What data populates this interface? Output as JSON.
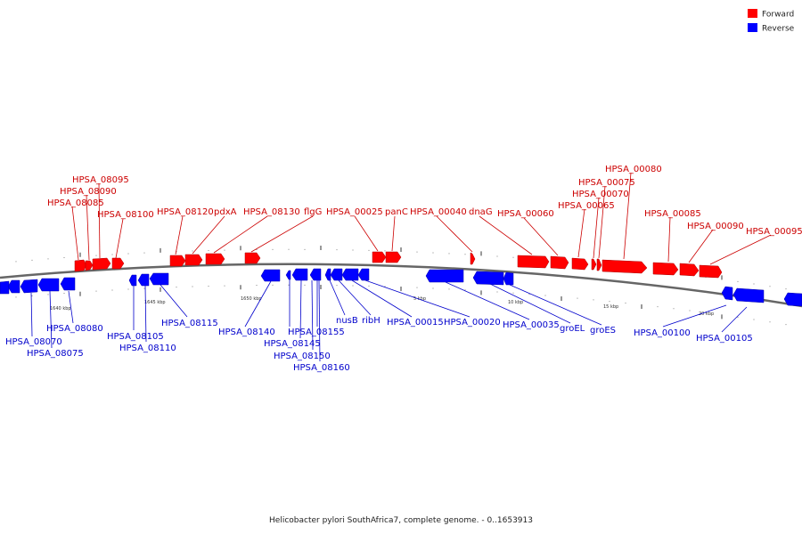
{
  "caption": "Helicobacter pylori SouthAfrica7, complete genome. - 0..1653913",
  "legend": {
    "forward_label": "Forward",
    "reverse_label": "Reverse",
    "forward_color": "#ff0000",
    "reverse_color": "#0000ff"
  },
  "colors": {
    "forward_label": "#cc0000",
    "reverse_label": "#0000cc",
    "backbone": "#666666"
  },
  "ticks": [
    "1640 kbp",
    "1645 kbp",
    "1650 kbp",
    "5 kbp",
    "10 kbp",
    "15 kbp",
    "20 kbp"
  ],
  "forward_labels": [
    "HPSA_08095",
    "HPSA_08090",
    "HPSA_08085",
    "HPSA_08100",
    "HPSA_08120",
    "pdxA",
    "HPSA_08130",
    "flgG",
    "HPSA_00025",
    "panC",
    "HPSA_00040",
    "dnaG",
    "HPSA_00060",
    "HPSA_00065",
    "HPSA_00070",
    "HPSA_00075",
    "HPSA_00080",
    "HPSA_00085",
    "HPSA_00090",
    "HPSA_00095"
  ],
  "reverse_labels": [
    "HPSA_08080",
    "HPSA_08070",
    "HPSA_08075",
    "HPSA_08105",
    "HPSA_08110",
    "HPSA_08115",
    "HPSA_08140",
    "HPSA_08145",
    "HPSA_08150",
    "HPSA_08155",
    "HPSA_08160",
    "nusB",
    "ribH",
    "HPSA_00015",
    "HPSA_00020",
    "HPSA_00035",
    "groEL",
    "groES",
    "HPSA_00100",
    "HPSA_00105"
  ]
}
